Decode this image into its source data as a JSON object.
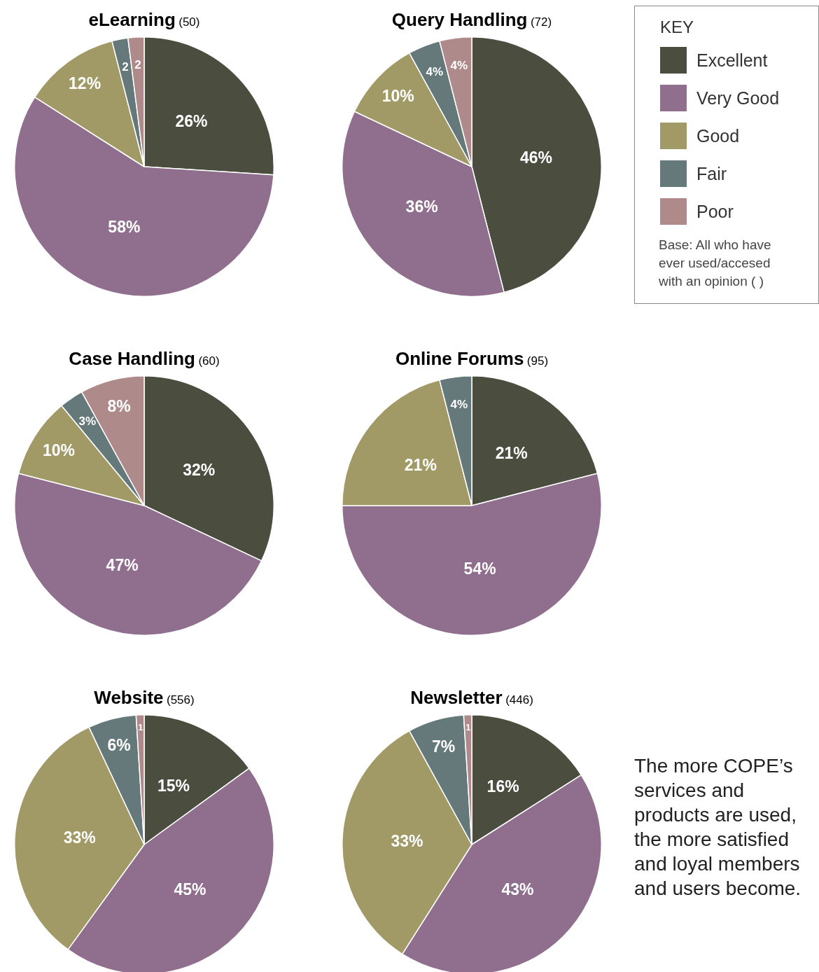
{
  "chart_data": [
    {
      "type": "pie",
      "title": "eLearning",
      "subtitle": "(50)",
      "categories": [
        "Excellent",
        "Very Good",
        "Good",
        "Fair",
        "Poor"
      ],
      "values": [
        26,
        58,
        12,
        2,
        2
      ],
      "value_labels": [
        "26%",
        "58%",
        "12%",
        "2",
        "2"
      ],
      "colors": [
        "#4b4d3e",
        "#8f6e8e",
        "#a19a66",
        "#66797a",
        "#ae8a8a"
      ],
      "legend": "right",
      "legend_title": "KEY",
      "annotations": [
        "Base: All who have ever used/accesed with an opinion ( )"
      ]
    },
    {
      "type": "pie",
      "title": "Query Handling",
      "subtitle": "(72)",
      "categories": [
        null,
        null,
        null,
        null,
        null
      ],
      "values": [
        46,
        36,
        10,
        4,
        4
      ],
      "value_labels": [
        "46%",
        "36%",
        "10%",
        "4%",
        "4%"
      ],
      "colors": [
        "#4b4d3e",
        "#8f6e8e",
        "#a19a66",
        "#66797a",
        "#ae8a8a"
      ]
    },
    {
      "type": "pie",
      "title": "Case Handling",
      "subtitle": "(60)",
      "categories": [
        null,
        null,
        null,
        null,
        null
      ],
      "values": [
        32,
        47,
        10,
        3,
        8
      ],
      "value_labels": [
        "32%",
        "47%",
        "10%",
        "3%",
        "8%"
      ],
      "colors": [
        "#4b4d3e",
        "#8f6e8e",
        "#a19a66",
        "#66797a",
        "#ae8a8a"
      ]
    },
    {
      "type": "pie",
      "title": "Online Forums",
      "subtitle": "(95)",
      "categories": [
        null,
        null,
        null,
        null
      ],
      "values": [
        21,
        54,
        21,
        4
      ],
      "value_labels": [
        "21%",
        "54%",
        "21%",
        "4%"
      ],
      "colors": [
        "#4b4d3e",
        "#8f6e8e",
        "#a19a66",
        "#66797a"
      ]
    },
    {
      "type": "pie",
      "title": "Website",
      "subtitle": "(556)",
      "categories": [
        null,
        null,
        null,
        null,
        null
      ],
      "values": [
        15,
        45,
        33,
        6,
        1
      ],
      "value_labels": [
        "15%",
        "45%",
        "33%",
        "6%",
        "1"
      ],
      "colors": [
        "#4b4d3e",
        "#8f6e8e",
        "#a19a66",
        "#66797a",
        "#ae8a8a"
      ]
    },
    {
      "type": "pie",
      "title": "Newsletter",
      "subtitle": "(446)",
      "categories": [
        null,
        null,
        null,
        null,
        null
      ],
      "values": [
        16,
        43,
        33,
        7,
        1
      ],
      "value_labels": [
        "16%",
        "43%",
        "33%",
        "7%",
        "1"
      ],
      "colors": [
        "#4b4d3e",
        "#8f6e8e",
        "#a19a66",
        "#66797a",
        "#ae8a8a"
      ],
      "annotations": [
        "The more COPE’s services and products are used, the more satisfied and loyal members and users become."
      ]
    }
  ]
}
